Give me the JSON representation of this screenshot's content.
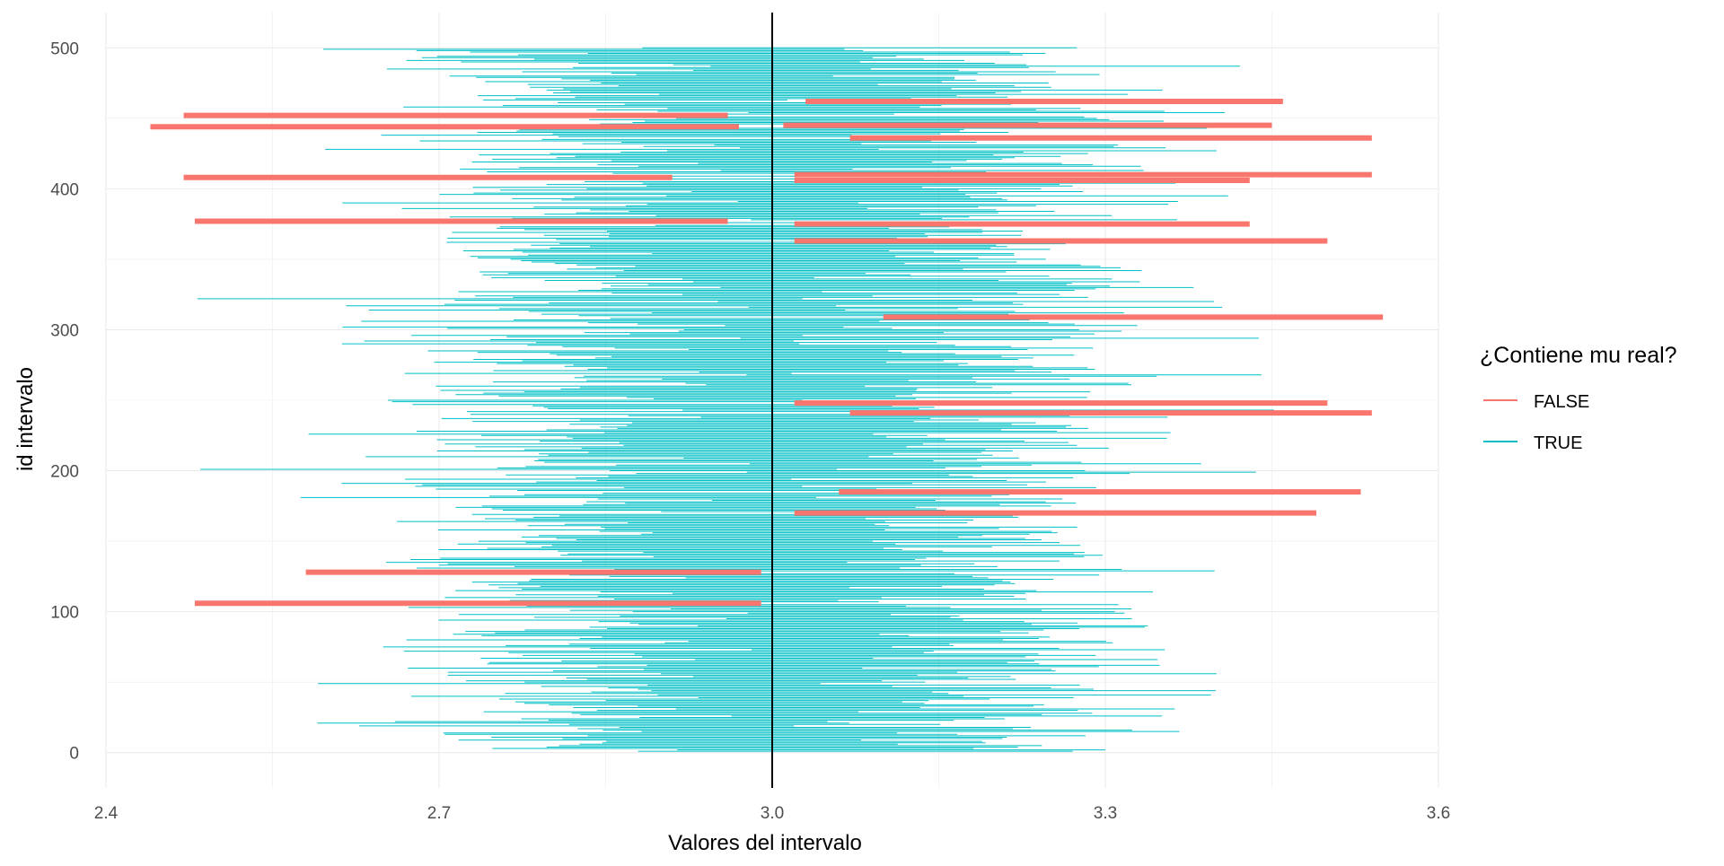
{
  "chart_data": {
    "type": "interval",
    "title": "",
    "xlabel": "Valores del intervalo",
    "ylabel": "id intervalo",
    "xlim": [
      2.4,
      3.6
    ],
    "ylim": [
      0,
      500
    ],
    "x_ticks": [
      2.4,
      2.7,
      3.0,
      3.3,
      3.6
    ],
    "x_tick_labels": [
      "2.4",
      "2.7",
      "3.0",
      "3.3",
      "3.6"
    ],
    "y_ticks": [
      0,
      100,
      200,
      300,
      400,
      500
    ],
    "y_tick_labels": [
      "0",
      "100",
      "200",
      "300",
      "400",
      "500"
    ],
    "grid": true,
    "reference_line": 3.0,
    "n_intervals": 500,
    "legend": {
      "title": "¿Contiene mu real?",
      "placement": "right",
      "entries": [
        {
          "label": "FALSE",
          "color": "#F8766D"
        },
        {
          "label": "TRUE",
          "color": "#00BFC4"
        }
      ]
    },
    "non_covering_intervals": [
      {
        "id": 106,
        "lower": 2.48,
        "upper": 2.99
      },
      {
        "id": 128,
        "lower": 2.58,
        "upper": 2.99
      },
      {
        "id": 170,
        "lower": 3.02,
        "upper": 3.49
      },
      {
        "id": 185,
        "lower": 3.06,
        "upper": 3.53
      },
      {
        "id": 241,
        "lower": 3.07,
        "upper": 3.54
      },
      {
        "id": 248,
        "lower": 3.02,
        "upper": 3.5
      },
      {
        "id": 309,
        "lower": 3.1,
        "upper": 3.55
      },
      {
        "id": 363,
        "lower": 3.02,
        "upper": 3.5
      },
      {
        "id": 375,
        "lower": 3.02,
        "upper": 3.43
      },
      {
        "id": 377,
        "lower": 2.48,
        "upper": 2.96
      },
      {
        "id": 406,
        "lower": 3.02,
        "upper": 3.43
      },
      {
        "id": 408,
        "lower": 2.47,
        "upper": 2.91
      },
      {
        "id": 410,
        "lower": 3.02,
        "upper": 3.54
      },
      {
        "id": 436,
        "lower": 3.07,
        "upper": 3.54
      },
      {
        "id": 444,
        "lower": 2.44,
        "upper": 2.97
      },
      {
        "id": 445,
        "lower": 3.01,
        "upper": 3.45
      },
      {
        "id": 452,
        "lower": 2.47,
        "upper": 2.96
      },
      {
        "id": 462,
        "lower": 3.03,
        "upper": 3.46
      }
    ]
  }
}
